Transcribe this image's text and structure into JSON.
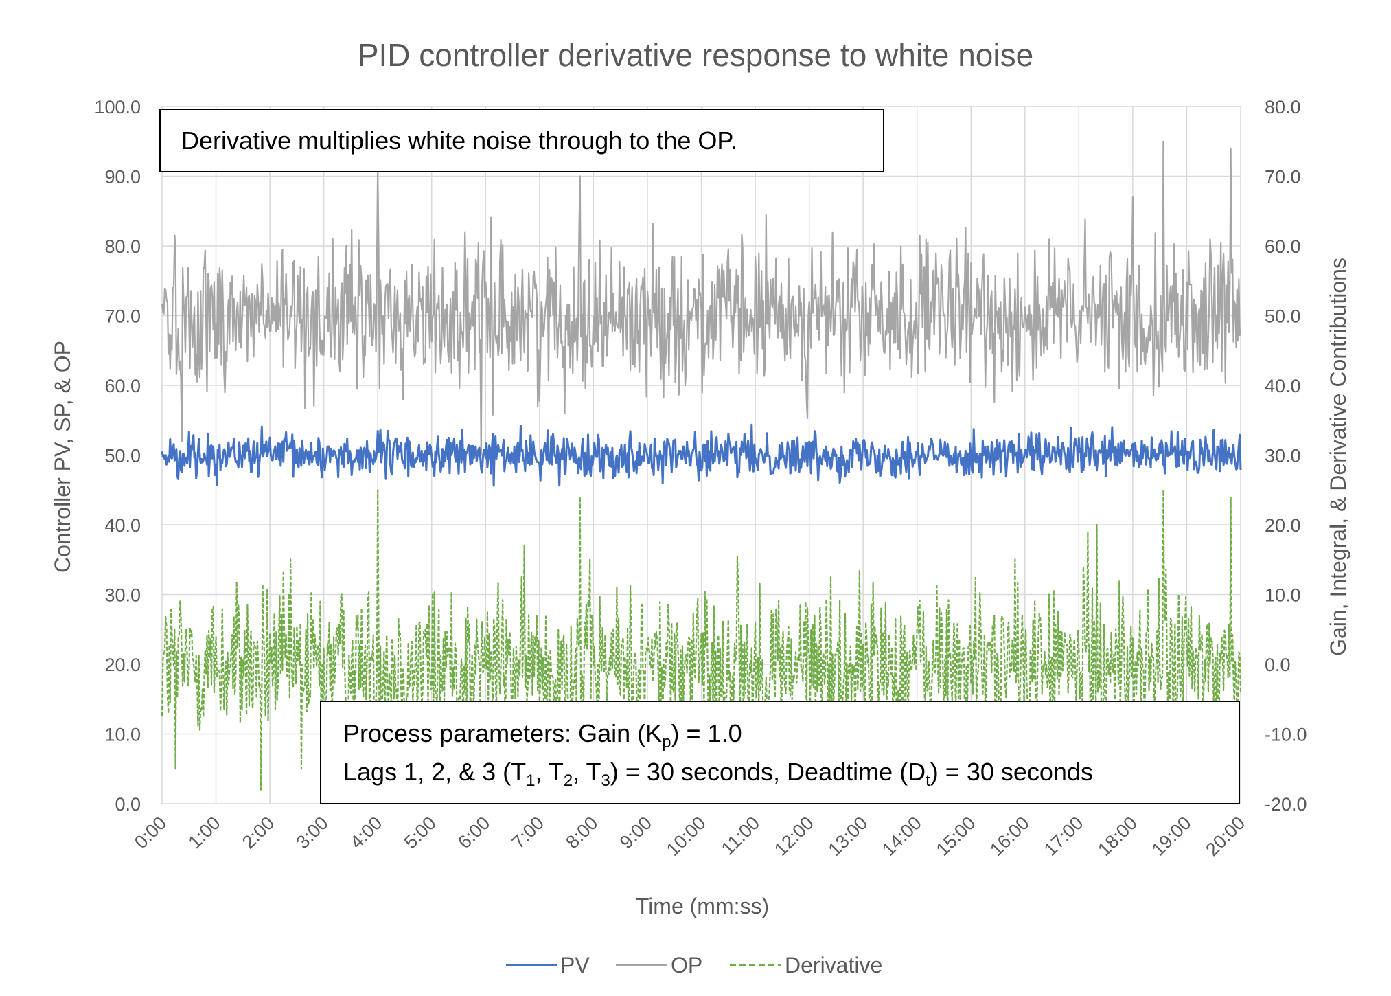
{
  "chart_data": {
    "type": "line",
    "title": "PID controller derivative response to white noise",
    "xlabel": "Time (mm:ss)",
    "ylabel_left": "Controller PV, SP, & OP",
    "ylabel_right": "Gain, Integral, & Derivative Contributions",
    "x_ticks": [
      "0:00",
      "1:00",
      "2:00",
      "3:00",
      "4:00",
      "5:00",
      "6:00",
      "7:00",
      "8:00",
      "9:00",
      "10:00",
      "11:00",
      "12:00",
      "13:00",
      "14:00",
      "15:00",
      "16:00",
      "17:00",
      "18:00",
      "19:00",
      "20:00"
    ],
    "x_range_seconds": [
      0,
      1200
    ],
    "y_left_ticks": [
      "0.0",
      "10.0",
      "20.0",
      "30.0",
      "40.0",
      "50.0",
      "60.0",
      "70.0",
      "80.0",
      "90.0",
      "100.0"
    ],
    "y_right_ticks": [
      "-20.0",
      "-10.0",
      "0.0",
      "10.0",
      "20.0",
      "30.0",
      "40.0",
      "50.0",
      "60.0",
      "70.0",
      "80.0"
    ],
    "ylim_left": [
      0,
      100
    ],
    "ylim_right": [
      -20,
      80
    ],
    "grid": true,
    "legend_position": "bottom",
    "series": [
      {
        "name": "PV",
        "axis": "left",
        "color": "#4472c4",
        "style": "solid",
        "mean": 50.0,
        "noise_sd": 1.5,
        "min": 45,
        "max": 55
      },
      {
        "name": "OP",
        "axis": "left",
        "color": "#a5a5a5",
        "style": "solid",
        "mean": 70.0,
        "noise_sd": 5.0,
        "min": 49,
        "max": 95
      },
      {
        "name": "Derivative",
        "axis": "right",
        "color": "#70ad47",
        "style": "dashed",
        "mean": 0.0,
        "noise_sd": 5.5,
        "min": -18,
        "max": 25
      }
    ],
    "spikes": {
      "OP": [
        [
          240,
          91
        ],
        [
          465,
          90
        ],
        [
          1080,
          87
        ],
        [
          1114,
          95
        ],
        [
          1189,
          94
        ],
        [
          22,
          52
        ],
        [
          355,
          50
        ]
      ],
      "Derivative": [
        [
          240,
          25
        ],
        [
          465,
          24
        ],
        [
          1114,
          25
        ],
        [
          1189,
          24
        ],
        [
          1030,
          19
        ],
        [
          1040,
          20
        ],
        [
          15,
          -15
        ],
        [
          110,
          -18
        ],
        [
          155,
          -15
        ],
        [
          640,
          15.5
        ]
      ]
    },
    "annotations": {
      "top": "Derivative multiplies white noise through to the OP.",
      "bottom_line1_pre": "Process parameters:  Gain (K",
      "bottom_line1_sub": "p",
      "bottom_line1_post": ") = 1.0",
      "bottom_line2_a": "Lags 1, 2, & 3 (T",
      "bottom_line2_sub1": "1",
      "bottom_line2_b": ", T",
      "bottom_line2_sub2": "2",
      "bottom_line2_c": ", T",
      "bottom_line2_sub3": "3",
      "bottom_line2_d": ") = 30 seconds, Deadtime (D",
      "bottom_line2_sub4": "t",
      "bottom_line2_e": ") = 30 seconds"
    }
  }
}
